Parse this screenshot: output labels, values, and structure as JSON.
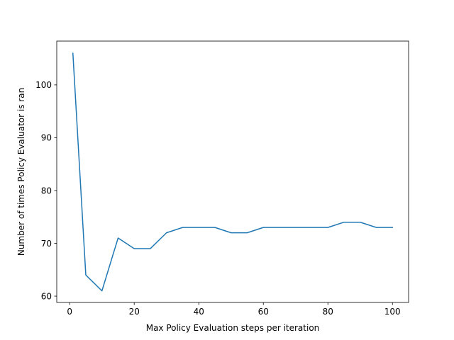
{
  "chart_data": {
    "type": "line",
    "title": "",
    "xlabel": "Max Policy Evaluation steps per iteration",
    "ylabel": "Number of times Policy Evaluator is ran",
    "xlim": [
      -4,
      105
    ],
    "ylim": [
      58.8,
      108.3
    ],
    "xticks": [
      0,
      20,
      40,
      60,
      80,
      100
    ],
    "yticks": [
      60,
      70,
      80,
      90,
      100
    ],
    "grid": false,
    "legend": "none",
    "series": [
      {
        "color": "#1f77b4",
        "x": [
          1,
          5,
          10,
          15,
          20,
          25,
          30,
          35,
          40,
          45,
          50,
          55,
          60,
          65,
          70,
          75,
          80,
          85,
          90,
          95,
          100
        ],
        "y": [
          106,
          64,
          61,
          71,
          69,
          69,
          72,
          73,
          73,
          73,
          72,
          72,
          73,
          73,
          73,
          73,
          73,
          74,
          74,
          73,
          73
        ]
      }
    ]
  }
}
